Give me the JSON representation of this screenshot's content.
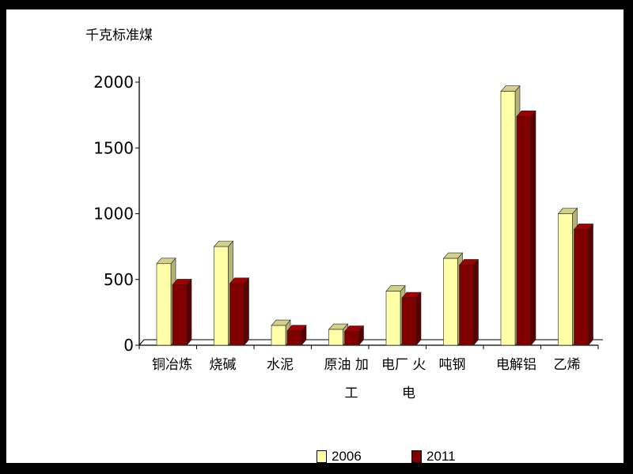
{
  "chart_data": {
    "type": "bar",
    "ylabel": "千克标准煤",
    "ylim": [
      0,
      2000
    ],
    "yticks": [
      0,
      500,
      1000,
      1500,
      2000
    ],
    "categories": [
      "铜冶炼",
      "烧碱",
      "水泥",
      "原油 加工",
      "电厂 火电",
      "吨钢",
      "电解铝",
      "乙烯"
    ],
    "category_lines": [
      [
        "铜冶炼"
      ],
      [
        "烧碱"
      ],
      [
        "水泥"
      ],
      [
        "原油  加",
        "工"
      ],
      [
        "电厂  火",
        "电"
      ],
      [
        "吨钢"
      ],
      [
        "电解铝"
      ],
      [
        "乙烯"
      ]
    ],
    "series": [
      {
        "name": "2006",
        "values": [
          620,
          750,
          150,
          120,
          410,
          660,
          1930,
          1000
        ],
        "color": "#ffffa8"
      },
      {
        "name": "2011",
        "values": [
          460,
          470,
          110,
          105,
          360,
          610,
          1740,
          880
        ],
        "color": "#800000"
      }
    ],
    "grid": false,
    "legend_position": "bottom"
  }
}
